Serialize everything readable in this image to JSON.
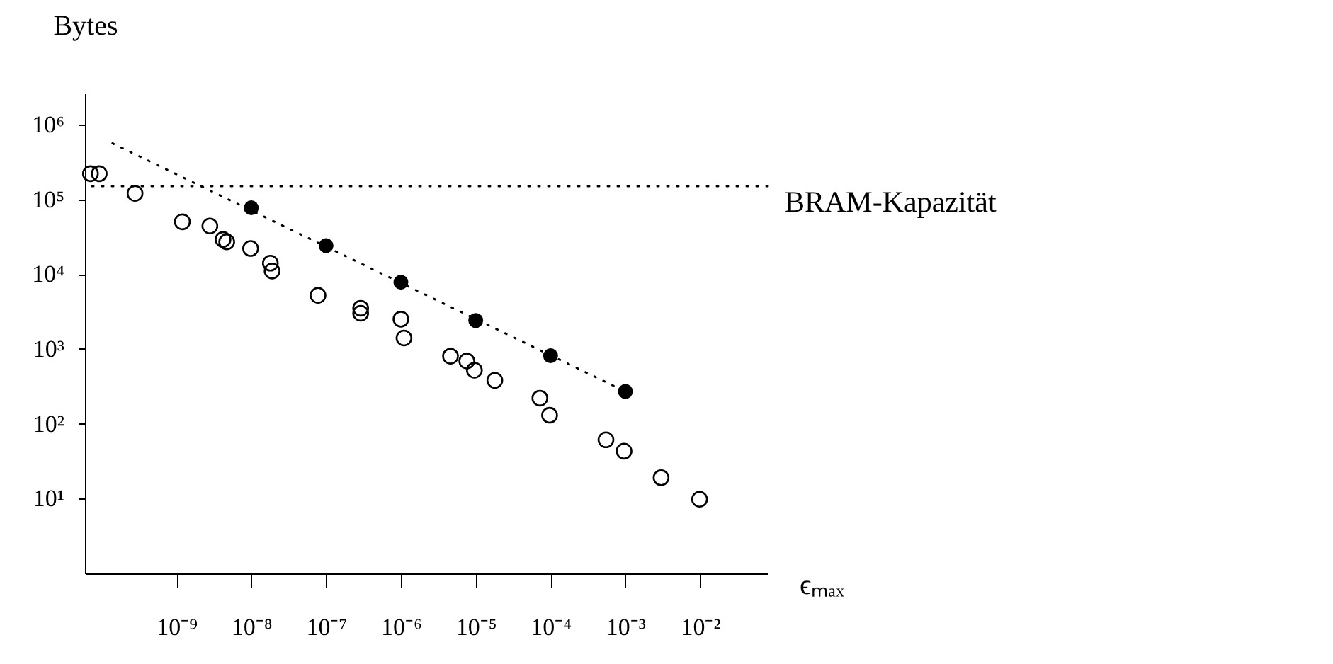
{
  "chart_data": {
    "type": "scatter",
    "xlabel": "ϵₘₐₓ",
    "ylabel": "Bytes",
    "log": "xy",
    "marker": "circle",
    "xlim": [
      6e-11,
      0.08
    ],
    "ylim": [
      1,
      2600000
    ],
    "xticks": [
      {
        "value": 1e-09,
        "label": "10⁻⁹"
      },
      {
        "value": 1e-08,
        "label": "10⁻⁸"
      },
      {
        "value": 1e-07,
        "label": "10⁻⁷"
      },
      {
        "value": 1e-06,
        "label": "10⁻⁶"
      },
      {
        "value": 1e-05,
        "label": "10⁻⁵"
      },
      {
        "value": 0.0001,
        "label": "10⁻⁴"
      },
      {
        "value": 0.001,
        "label": "10⁻³"
      },
      {
        "value": 0.01,
        "label": "10⁻²"
      }
    ],
    "yticks": [
      {
        "value": 10,
        "label": "10¹"
      },
      {
        "value": 100,
        "label": "10²"
      },
      {
        "value": 1000,
        "label": "10³"
      },
      {
        "value": 10000,
        "label": "10⁴"
      },
      {
        "value": 100000,
        "label": "10⁵"
      },
      {
        "value": 1000000,
        "label": "10⁶"
      }
    ],
    "series": [
      {
        "color": "#000000",
        "x": [
          7.1e-11,
          9.3e-11,
          2.8e-10,
          1.2e-09,
          2.8e-09,
          4.2e-09,
          4.7e-09,
          9.8e-09,
          1.8e-08,
          1.9e-08,
          7.8e-08,
          2.9e-07,
          2.9e-07,
          1e-06,
          1.1e-06,
          4.6e-06,
          7.6e-06,
          9.6e-06,
          1.8e-05,
          7.2e-05,
          9.7e-05,
          0.00055,
          0.00096,
          0.003,
          0.0098
        ],
        "values": [
          220000,
          220000,
          120000,
          50000,
          44000,
          29000,
          27000,
          22000,
          14000,
          11000,
          5200,
          3500,
          3000,
          2500,
          1400,
          800,
          690,
          520,
          380,
          220,
          130,
          61,
          43,
          19,
          9.8
        ]
      },
      {
        "color": "#000000",
        "x": [
          1e-08,
          1e-07,
          1e-06,
          1e-05,
          0.0001,
          0.001
        ],
        "values": [
          77000,
          24000,
          7800,
          2400,
          810,
          270
        ]
      },
      {
        "type": "line",
        "color": "#000000",
        "line_style": "dotted",
        "marker": "none",
        "x": [
          1.4e-10,
          0.001
        ],
        "values": [
          560000,
          270
        ]
      }
    ],
    "ref_lines": [
      {
        "axis": "y",
        "value": 150000,
        "label": "BRAM-Kapazität",
        "color": "#000000",
        "line_style": "dotted"
      }
    ]
  }
}
